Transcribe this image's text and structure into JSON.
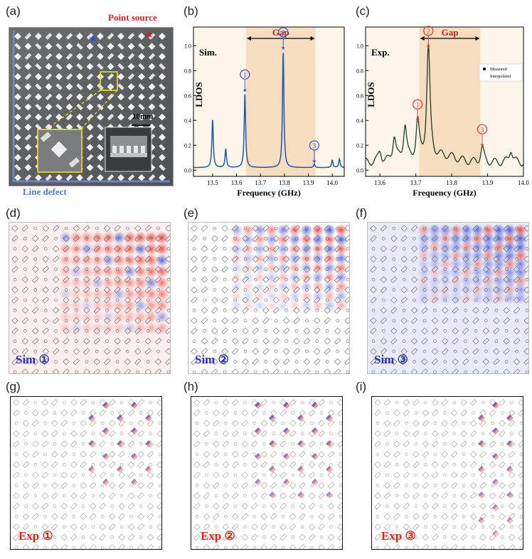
{
  "panels": {
    "a": "(a)",
    "b": "(b)",
    "c": "(c)",
    "d": "(d)",
    "e": "(e)",
    "f": "(f)",
    "g": "(g)",
    "h": "(h)",
    "i": "(i)"
  },
  "photo": {
    "point_source": "Point source",
    "line_defect": "Line defect",
    "scale_bar": "10mm"
  },
  "chart_data": [
    {
      "type": "line",
      "title": "Sim.",
      "xlabel": "Frequency (GHz)",
      "ylabel": "LDOS",
      "xlim": [
        13.42,
        14.05
      ],
      "ylim": [
        -0.05,
        1.15
      ],
      "xticks": [
        "13.5",
        "13.6",
        "13.7",
        "13.8",
        "13.9",
        "14.0"
      ],
      "yticks": [
        "0.0",
        "0.2",
        "0.4",
        "0.6",
        "0.8",
        "1.0"
      ],
      "gap": {
        "label": "Gap",
        "from": 13.64,
        "to": 13.93
      },
      "markers": [
        {
          "label": "①",
          "x": 13.635,
          "y": 0.62
        },
        {
          "label": "②",
          "x": 13.795,
          "y": 0.96
        },
        {
          "label": "③",
          "x": 13.925,
          "y": 0.05
        }
      ],
      "peaks": [
        {
          "x": 13.5,
          "y": 0.41
        },
        {
          "x": 13.555,
          "y": 0.17
        },
        {
          "x": 13.635,
          "y": 0.62
        },
        {
          "x": 13.795,
          "y": 0.96
        },
        {
          "x": 13.925,
          "y": 0.05
        },
        {
          "x": 14.0,
          "y": 0.08
        },
        {
          "x": 14.03,
          "y": 0.09
        }
      ],
      "baseline": 0.02
    },
    {
      "type": "line",
      "title": "Exp.",
      "xlabel": "Frequency (GHz)",
      "ylabel": "LDOS",
      "xlim": [
        13.56,
        14.0
      ],
      "ylim": [
        -0.05,
        1.15
      ],
      "xticks": [
        "13.6",
        "13.7",
        "13.8",
        "13.9",
        "14.0"
      ],
      "yticks": [
        "0.0",
        "0.2",
        "0.4",
        "0.6",
        "0.8",
        "1.0"
      ],
      "gap": {
        "label": "Gap",
        "from": 13.71,
        "to": 13.88
      },
      "legend": {
        "position": "top-right",
        "entries": [
          "Measured",
          "Interpolated"
        ]
      },
      "markers": [
        {
          "label": "①",
          "x": 13.705,
          "y": 0.38
        },
        {
          "label": "②",
          "x": 13.735,
          "y": 0.97
        },
        {
          "label": "③",
          "x": 13.885,
          "y": 0.18
        }
      ],
      "peaks": [
        {
          "x": 13.6,
          "y": 0.15
        },
        {
          "x": 13.64,
          "y": 0.27
        },
        {
          "x": 13.67,
          "y": 0.36
        },
        {
          "x": 13.705,
          "y": 0.38
        },
        {
          "x": 13.735,
          "y": 0.97
        },
        {
          "x": 13.885,
          "y": 0.18
        },
        {
          "x": 13.965,
          "y": 0.17
        }
      ],
      "baseline": 0.06,
      "colors": {
        "measured": "#e8c820",
        "interpolated": "#1f4f8f"
      }
    }
  ],
  "sim_panels": [
    {
      "label": "Sim ①"
    },
    {
      "label": "Sim ②"
    },
    {
      "label": "Sim ③"
    }
  ],
  "exp_panels": [
    {
      "label": "Exp ①"
    },
    {
      "label": "Exp ②"
    },
    {
      "label": "Exp ③"
    }
  ],
  "colors": {
    "gap_fill": "#f7ddc0",
    "background_band": "#fdf4ea",
    "sim_line": "#1a5aa6",
    "marker_blue": "#3a5cc9",
    "marker_red": "#e23a2e",
    "field_red": "#e8332a",
    "field_blue": "#2d43d0"
  }
}
